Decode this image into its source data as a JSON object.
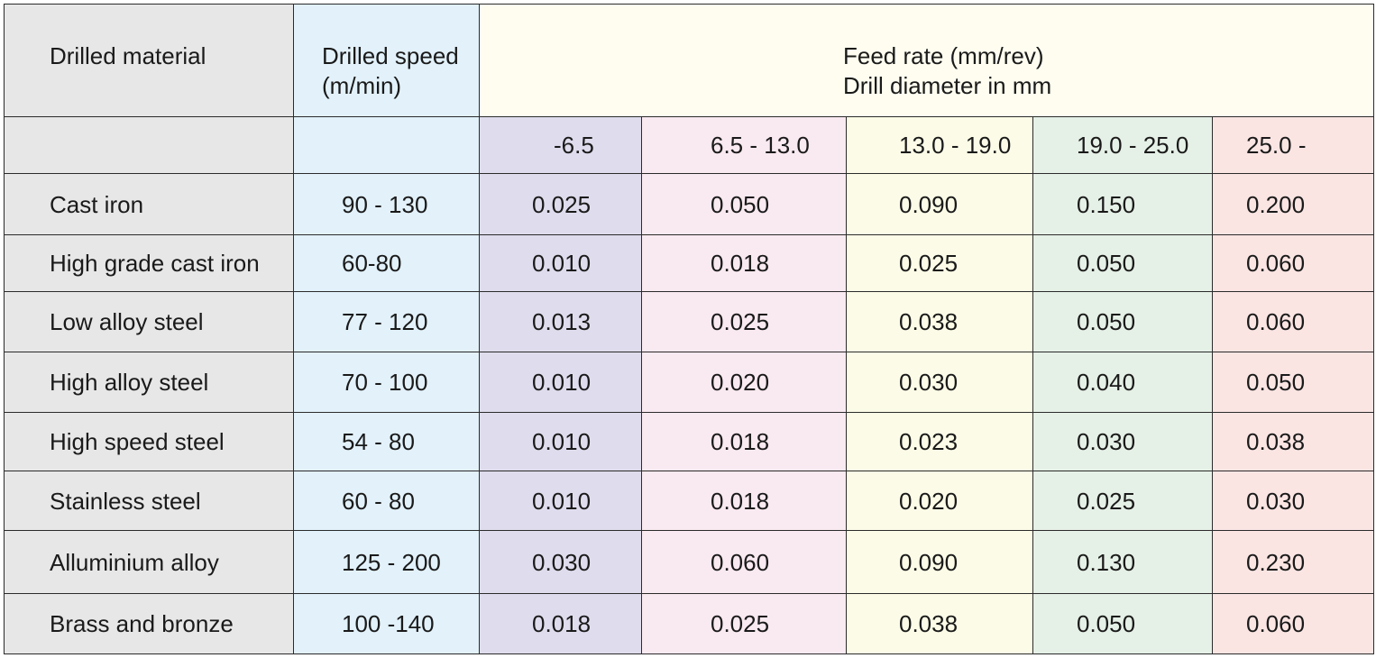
{
  "header": {
    "material_label": "Drilled material",
    "speed_label_line1": "Drilled speed",
    "speed_label_line2": "(m/min)",
    "feed_label_line1": "Feed rate (mm/rev)",
    "feed_label_line2": "Drill diameter in mm"
  },
  "diameter_ranges": [
    "-6.5",
    "6.5 - 13.0",
    "13.0 - 19.0",
    "19.0 - 25.0",
    "25.0 -"
  ],
  "rows": [
    {
      "material": "Cast iron",
      "speed": "90 - 130",
      "feeds": [
        "0.025",
        "0.050",
        "0.090",
        "0.150",
        "0.200"
      ]
    },
    {
      "material": "High grade cast iron",
      "speed": "60-80",
      "feeds": [
        "0.010",
        "0.018",
        "0.025",
        "0.050",
        "0.060"
      ]
    },
    {
      "material": "Low alloy steel",
      "speed": "77 - 120",
      "feeds": [
        "0.013",
        "0.025",
        "0.038",
        "0.050",
        "0.060"
      ]
    },
    {
      "material": "High alloy steel",
      "speed": "70 - 100",
      "feeds": [
        "0.010",
        "0.020",
        "0.030",
        "0.040",
        "0.050"
      ]
    },
    {
      "material": "High speed steel",
      "speed": "54 - 80",
      "feeds": [
        "0.010",
        "0.018",
        "0.023",
        "0.030",
        "0.038"
      ]
    },
    {
      "material": "Stainless steel",
      "speed": "60 - 80",
      "feeds": [
        "0.010",
        "0.018",
        "0.020",
        "0.025",
        "0.030"
      ]
    },
    {
      "material": "Alluminium alloy",
      "speed": "125 - 200",
      "feeds": [
        "0.030",
        "0.060",
        "0.090",
        "0.130",
        "0.230"
      ]
    },
    {
      "material": "Brass and bronze",
      "speed": "100 -140",
      "feeds": [
        "0.018",
        "0.025",
        "0.038",
        "0.050",
        "0.060"
      ]
    }
  ]
}
